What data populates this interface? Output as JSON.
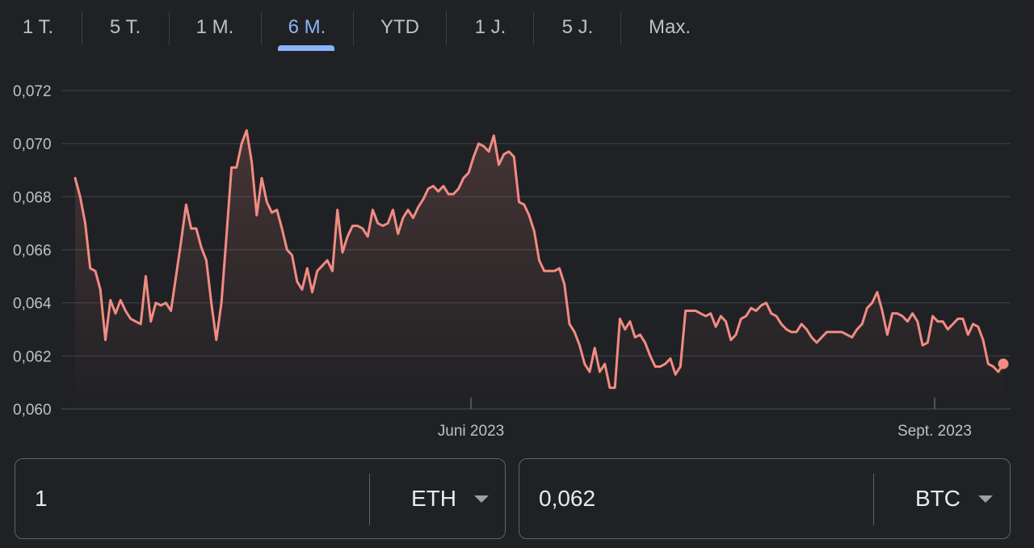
{
  "tabs": [
    {
      "label": "1 T.",
      "active": false
    },
    {
      "label": "5 T.",
      "active": false
    },
    {
      "label": "1 M.",
      "active": false
    },
    {
      "label": "6 M.",
      "active": true
    },
    {
      "label": "YTD",
      "active": false
    },
    {
      "label": "1 J.",
      "active": false
    },
    {
      "label": "5 J.",
      "active": false
    },
    {
      "label": "Max.",
      "active": false
    }
  ],
  "colors": {
    "line": "#f28b82",
    "accent": "#8ab4f8",
    "grid": "#3c4043"
  },
  "chart_data": {
    "type": "line",
    "title": "",
    "xlabel": "",
    "ylabel": "",
    "ylim": [
      0.06,
      0.072
    ],
    "yticks": [
      "0,072",
      "0,070",
      "0,068",
      "0,066",
      "0,064",
      "0,062",
      "0,060"
    ],
    "xticks": [
      "Juni 2023",
      "Sept. 2023"
    ],
    "series": [
      {
        "values": [
          0.0687,
          0.068,
          0.067,
          0.0653,
          0.0652,
          0.0645,
          0.0626,
          0.0641,
          0.0636,
          0.0641,
          0.0637,
          0.0634,
          0.0633,
          0.0632,
          0.065,
          0.0633,
          0.064,
          0.0639,
          0.064,
          0.0637,
          0.065,
          0.0663,
          0.0677,
          0.0668,
          0.0668,
          0.0661,
          0.0656,
          0.064,
          0.0626,
          0.064,
          0.0665,
          0.0691,
          0.0691,
          0.07,
          0.0705,
          0.0693,
          0.0673,
          0.0687,
          0.0678,
          0.0674,
          0.0675,
          0.0668,
          0.066,
          0.0658,
          0.0648,
          0.0645,
          0.0653,
          0.0644,
          0.0652,
          0.0654,
          0.0656,
          0.0652,
          0.0675,
          0.0659,
          0.0665,
          0.0669,
          0.0669,
          0.0668,
          0.0665,
          0.0675,
          0.067,
          0.0669,
          0.067,
          0.0675,
          0.0666,
          0.0672,
          0.0675,
          0.0672,
          0.0676,
          0.0679,
          0.0683,
          0.0684,
          0.0682,
          0.0684,
          0.0681,
          0.0681,
          0.0683,
          0.0687,
          0.0689,
          0.0695,
          0.07,
          0.0699,
          0.0697,
          0.0703,
          0.0692,
          0.0696,
          0.0697,
          0.0695,
          0.0678,
          0.0677,
          0.0673,
          0.0667,
          0.0656,
          0.0652,
          0.0652,
          0.0652,
          0.0653,
          0.0647,
          0.0632,
          0.0629,
          0.0624,
          0.0617,
          0.0614,
          0.0623,
          0.0614,
          0.0617,
          0.0608,
          0.0608,
          0.0634,
          0.063,
          0.0633,
          0.0627,
          0.0628,
          0.0625,
          0.062,
          0.0616,
          0.0616,
          0.0617,
          0.0619,
          0.0613,
          0.0616,
          0.0637,
          0.0637,
          0.0637,
          0.0636,
          0.0635,
          0.0636,
          0.0631,
          0.0635,
          0.0633,
          0.0626,
          0.0628,
          0.0634,
          0.0635,
          0.0638,
          0.0637,
          0.0639,
          0.064,
          0.0636,
          0.0635,
          0.0632,
          0.063,
          0.0629,
          0.0629,
          0.0632,
          0.063,
          0.0627,
          0.0625,
          0.0627,
          0.0629,
          0.0629,
          0.0629,
          0.0629,
          0.0628,
          0.0627,
          0.063,
          0.0632,
          0.0638,
          0.064,
          0.0644,
          0.0637,
          0.0628,
          0.0636,
          0.0636,
          0.0635,
          0.0633,
          0.0636,
          0.0633,
          0.0624,
          0.0625,
          0.0635,
          0.0633,
          0.0633,
          0.063,
          0.0632,
          0.0634,
          0.0634,
          0.0628,
          0.0632,
          0.0631,
          0.0626,
          0.0617,
          0.0616,
          0.0614,
          0.0617
        ]
      }
    ]
  },
  "converter": {
    "from_value": "1",
    "from_currency": "ETH",
    "to_value": "0,062",
    "to_currency": "BTC"
  }
}
